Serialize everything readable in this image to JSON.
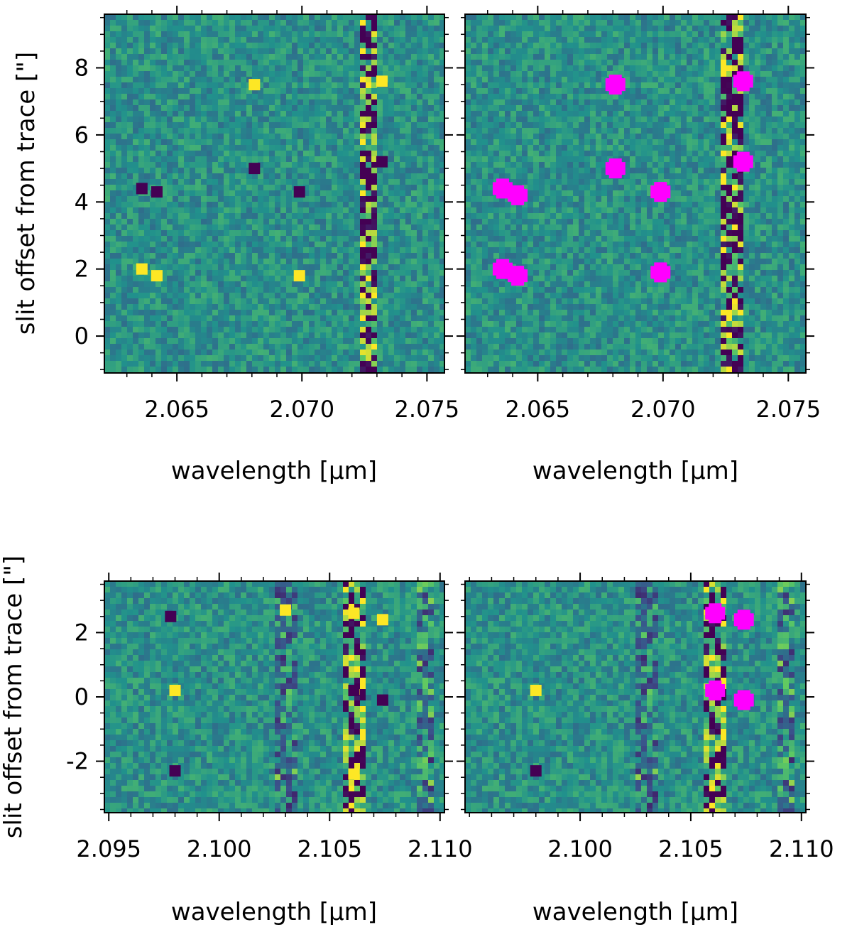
{
  "colors": {
    "viridis": [
      "#440154",
      "#3b528b",
      "#21918c",
      "#5ec962",
      "#fde725"
    ],
    "background": "#2c728e",
    "mask": "#ff00ff",
    "axis": "#000000"
  },
  "chart_data": [
    {
      "type": "heatmap",
      "panel": "top-left",
      "xlabel": "wavelength [μm]",
      "ylabel": "slit offset from trace [\"]",
      "xlim": [
        2.0621,
        2.0757
      ],
      "ylim": [
        -1.1,
        9.6
      ],
      "xticks": [
        2.065,
        2.07,
        2.075
      ],
      "xtick_labels": [
        "2.065",
        "2.070",
        "2.075"
      ],
      "yticks": [
        0,
        2,
        4,
        6,
        8
      ],
      "ytick_labels": [
        "0",
        "2",
        "4",
        "6",
        "8"
      ],
      "sky_lines": [
        2.0727
      ],
      "bright_features": [
        {
          "x": 2.0636,
          "y": 2.0
        },
        {
          "x": 2.0642,
          "y": 1.8
        },
        {
          "x": 2.0681,
          "y": 7.5
        },
        {
          "x": 2.0699,
          "y": 1.8
        },
        {
          "x": 2.0732,
          "y": 7.6
        }
      ],
      "dark_features": [
        {
          "x": 2.0636,
          "y": 4.4
        },
        {
          "x": 2.0642,
          "y": 4.3
        },
        {
          "x": 2.0681,
          "y": 5.0
        },
        {
          "x": 2.0699,
          "y": 4.3
        },
        {
          "x": 2.0732,
          "y": 5.2
        }
      ],
      "masked_regions": []
    },
    {
      "type": "heatmap",
      "panel": "top-right",
      "xlabel": "wavelength [μm]",
      "ylabel": "",
      "xlim": [
        2.0621,
        2.0757
      ],
      "ylim": [
        -1.1,
        9.6
      ],
      "xticks": [
        2.065,
        2.07,
        2.075
      ],
      "xtick_labels": [
        "2.065",
        "2.070",
        "2.075"
      ],
      "yticks": [
        0,
        2,
        4,
        6,
        8
      ],
      "ytick_labels": [],
      "sky_lines": [
        2.0727
      ],
      "bright_features": [],
      "dark_features": [],
      "masked_regions": [
        {
          "x": 2.0636,
          "y": 4.4
        },
        {
          "x": 2.0642,
          "y": 4.2
        },
        {
          "x": 2.0681,
          "y": 7.5
        },
        {
          "x": 2.0681,
          "y": 5.0
        },
        {
          "x": 2.0699,
          "y": 4.3
        },
        {
          "x": 2.0699,
          "y": 1.9
        },
        {
          "x": 2.0636,
          "y": 2.0
        },
        {
          "x": 2.0642,
          "y": 1.8
        },
        {
          "x": 2.0732,
          "y": 7.6
        },
        {
          "x": 2.0732,
          "y": 5.2
        }
      ]
    },
    {
      "type": "heatmap",
      "panel": "bottom-left",
      "xlabel": "wavelength [μm]",
      "ylabel": "slit offset from trace [\"]",
      "xlim": [
        2.0948,
        2.1102
      ],
      "ylim": [
        -3.6,
        3.6
      ],
      "xticks": [
        2.095,
        2.1,
        2.105,
        2.11
      ],
      "xtick_labels": [
        "2.095",
        "2.100",
        "2.105",
        "2.110"
      ],
      "yticks": [
        -2,
        0,
        2
      ],
      "ytick_labels": [
        "-2",
        "0",
        "2"
      ],
      "sky_lines": [
        2.1061,
        2.103,
        2.1093
      ],
      "bright_features": [
        {
          "x": 2.1061,
          "y": 2.6
        },
        {
          "x": 2.1074,
          "y": 2.4
        },
        {
          "x": 2.103,
          "y": 2.7
        },
        {
          "x": 2.1061,
          "y": -2.4
        },
        {
          "x": 2.098,
          "y": 0.2
        }
      ],
      "dark_features": [
        {
          "x": 2.1061,
          "y": 0.2
        },
        {
          "x": 2.1074,
          "y": -0.1
        },
        {
          "x": 2.098,
          "y": -2.3
        },
        {
          "x": 2.0978,
          "y": 2.5
        }
      ],
      "masked_regions": []
    },
    {
      "type": "heatmap",
      "panel": "bottom-right",
      "xlabel": "wavelength [μm]",
      "ylabel": "",
      "xlim": [
        2.0948,
        2.1102
      ],
      "ylim": [
        -3.6,
        3.6
      ],
      "xticks": [
        2.1,
        2.105,
        2.11
      ],
      "xtick_labels": [
        "2.100",
        "2.105",
        "2.110"
      ],
      "yticks": [
        -2,
        0,
        2
      ],
      "ytick_labels": [],
      "sky_lines": [
        2.1061,
        2.103,
        2.1093
      ],
      "bright_features": [
        {
          "x": 2.098,
          "y": 0.2
        }
      ],
      "dark_features": [
        {
          "x": 2.098,
          "y": -2.3
        }
      ],
      "masked_regions": [
        {
          "x": 2.1061,
          "y": 2.6
        },
        {
          "x": 2.1074,
          "y": 2.4
        },
        {
          "x": 2.1061,
          "y": 0.2
        },
        {
          "x": 2.1074,
          "y": -0.1
        }
      ]
    }
  ]
}
